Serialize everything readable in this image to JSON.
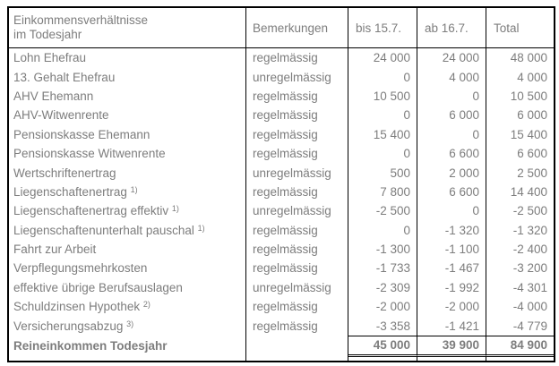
{
  "table": {
    "header": {
      "col1_line1": "Einkommensverhältnisse",
      "col1_line2": "im Todesjahr",
      "col2": "Bemerkungen",
      "col3": "bis 15.7.",
      "col4": "ab 16.7.",
      "col5": "Total"
    },
    "rows": [
      {
        "label": "Lohn Ehefrau",
        "sup": "",
        "bemerkung": "regelmässig",
        "bis": "24 000",
        "ab": "24 000",
        "total": "48 000"
      },
      {
        "label": "13. Gehalt Ehefrau",
        "sup": "",
        "bemerkung": "unregelmässig",
        "bis": "0",
        "ab": "4 000",
        "total": "4 000"
      },
      {
        "label": "AHV Ehemann",
        "sup": "",
        "bemerkung": "regelmässig",
        "bis": "10 500",
        "ab": "0",
        "total": "10 500"
      },
      {
        "label": "AHV-Witwenrente",
        "sup": "",
        "bemerkung": "regelmässig",
        "bis": "0",
        "ab": "6 000",
        "total": "6 000"
      },
      {
        "label": "Pensionskasse Ehemann",
        "sup": "",
        "bemerkung": "regelmässig",
        "bis": "15 400",
        "ab": "0",
        "total": "15 400"
      },
      {
        "label": "Pensionskasse Witwenrente",
        "sup": "",
        "bemerkung": "regelmässig",
        "bis": "0",
        "ab": "6 600",
        "total": "6 600"
      },
      {
        "label": "Wertschriftenertrag",
        "sup": "",
        "bemerkung": "unregelmässig",
        "bis": "500",
        "ab": "2 000",
        "total": "2 500"
      },
      {
        "label": "Liegenschaftenertrag",
        "sup": "1)",
        "bemerkung": "regelmässig",
        "bis": "7 800",
        "ab": "6 600",
        "total": "14 400"
      },
      {
        "label": "Liegenschaftenertrag effektiv",
        "sup": "1)",
        "bemerkung": "unregelmässig",
        "bis": "-2 500",
        "ab": "0",
        "total": "-2 500"
      },
      {
        "label": "Liegenschaftenunterhalt pauschal",
        "sup": "1)",
        "bemerkung": "regelmässig",
        "bis": "0",
        "ab": "-1 320",
        "total": "-1 320"
      },
      {
        "label": "Fahrt zur Arbeit",
        "sup": "",
        "bemerkung": "regelmässig",
        "bis": "-1 300",
        "ab": "-1 100",
        "total": "-2 400"
      },
      {
        "label": "Verpflegungsmehrkosten",
        "sup": "",
        "bemerkung": "regelmässig",
        "bis": "-1 733",
        "ab": "-1 467",
        "total": "-3 200"
      },
      {
        "label": "effektive übrige Berufsauslagen",
        "sup": "",
        "bemerkung": "unregelmässig",
        "bis": "-2 309",
        "ab": "-1 992",
        "total": "-4 301"
      },
      {
        "label": "Schuldzinsen Hypothek",
        "sup": "2)",
        "bemerkung": "regelmässig",
        "bis": "-2 000",
        "ab": "-2 000",
        "total": "-4 000"
      },
      {
        "label": "Versicherungsabzug",
        "sup": "3)",
        "bemerkung": "regelmässig",
        "bis": "-3 358",
        "ab": "-1 421",
        "total": "-4 779"
      }
    ],
    "footer": {
      "label": "Reineinkommen Todesjahr",
      "bemerkung": "",
      "bis": "45 000",
      "ab": "39 900",
      "total": "84 900"
    }
  },
  "colors": {
    "text": "#7d7d7d",
    "border": "#000000",
    "background": "#ffffff"
  }
}
